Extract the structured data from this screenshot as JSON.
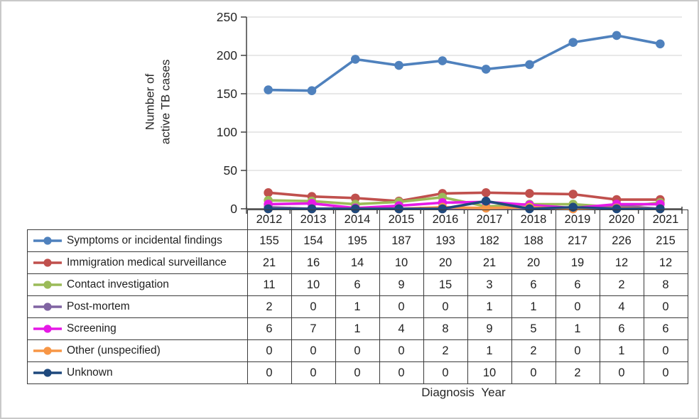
{
  "figure": {
    "background": "#ffffff",
    "border_color": "#c9c9c9"
  },
  "chart_data": {
    "type": "line",
    "title": "",
    "xlabel": "Diagnosis Year",
    "ylabel": "Number of active TB cases",
    "ylabel_lines": [
      "Number of",
      "active TB cases"
    ],
    "categories": [
      "2012",
      "2013",
      "2014",
      "2015",
      "2016",
      "2017",
      "2018",
      "2019",
      "2020",
      "2021"
    ],
    "ylim": [
      0,
      250
    ],
    "yticks": [
      0,
      50,
      100,
      150,
      200,
      250
    ],
    "grid": true,
    "gridline_color": "#d9d9d9",
    "axis_color": "#404040",
    "legend_position": "table-left",
    "series": [
      {
        "name": "Symptoms or incidental findings",
        "color": "#4f81bd",
        "values": [
          155,
          154,
          195,
          187,
          193,
          182,
          188,
          217,
          226,
          215
        ]
      },
      {
        "name": "Immigration medical surveillance",
        "color": "#c0504d",
        "values": [
          21,
          16,
          14,
          10,
          20,
          21,
          20,
          19,
          12,
          12
        ]
      },
      {
        "name": "Contact investigation",
        "color": "#9bbb59",
        "values": [
          11,
          10,
          6,
          9,
          15,
          3,
          6,
          6,
          2,
          8
        ]
      },
      {
        "name": "Post-mortem",
        "color": "#8064a2",
        "values": [
          2,
          0,
          1,
          0,
          0,
          1,
          1,
          0,
          4,
          0
        ]
      },
      {
        "name": "Screening",
        "color": "#e619e6",
        "values": [
          6,
          7,
          1,
          4,
          8,
          9,
          5,
          1,
          6,
          6
        ]
      },
      {
        "name": "Other (unspecified)",
        "color": "#f79646",
        "values": [
          0,
          0,
          0,
          0,
          2,
          1,
          2,
          0,
          1,
          0
        ]
      },
      {
        "name": "Unknown",
        "color": "#1f497d",
        "values": [
          0,
          0,
          0,
          0,
          0,
          10,
          0,
          2,
          0,
          0
        ]
      }
    ]
  }
}
